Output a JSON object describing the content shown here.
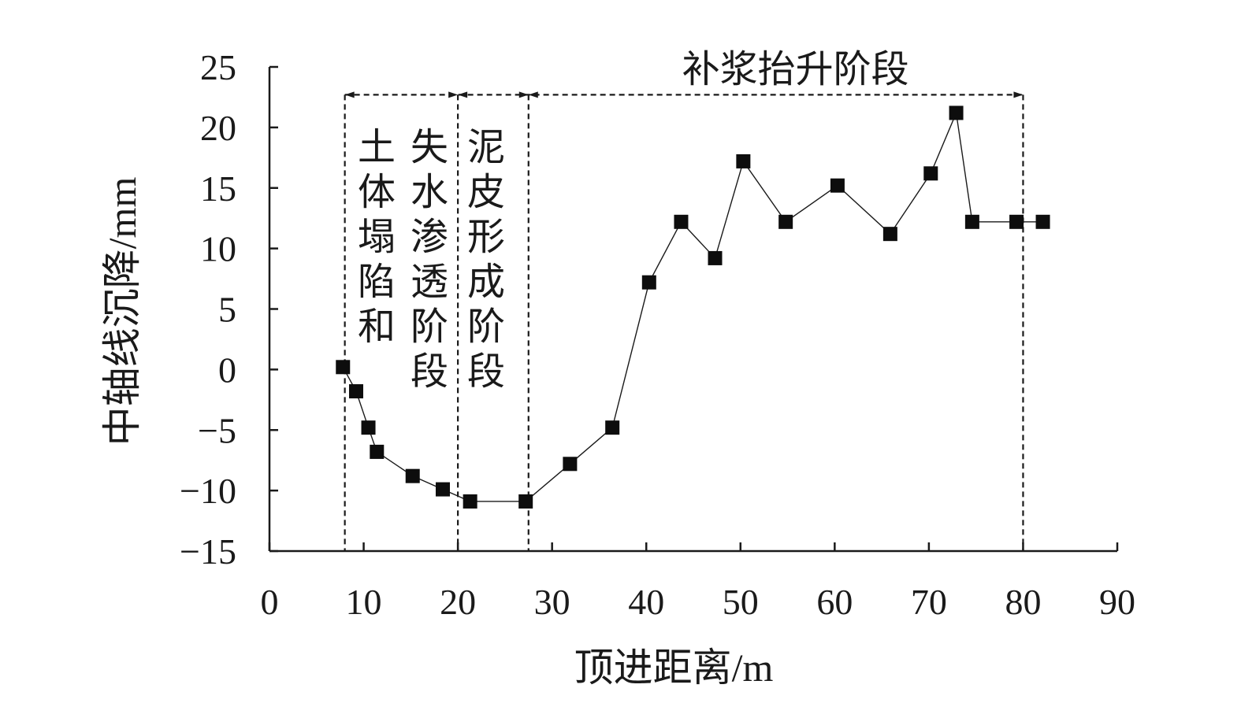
{
  "chart_data": {
    "type": "line",
    "title": "",
    "xlabel": "顶进距离/m",
    "ylabel": "中轴线沉降/mm",
    "xlim": [
      0,
      90
    ],
    "ylim": [
      -15,
      25
    ],
    "x_ticks": [
      0,
      10,
      20,
      30,
      40,
      50,
      60,
      70,
      80,
      90
    ],
    "y_ticks": [
      25,
      20,
      15,
      10,
      5,
      0,
      -5,
      -10,
      -15
    ],
    "x_tick_labels": [
      "0",
      "10",
      "20",
      "30",
      "40",
      "50",
      "60",
      "70",
      "80",
      "90"
    ],
    "y_tick_labels": [
      "25",
      "20",
      "15",
      "10",
      "5",
      "0",
      "−5",
      "−10",
      "−15"
    ],
    "grid": false,
    "marker": "square",
    "series": [
      {
        "x": [
          7.8,
          9.2,
          10.5,
          11.4,
          15.2,
          18.4,
          21.3,
          27.2,
          31.9,
          36.4,
          40.3,
          43.7,
          47.3,
          50.3,
          54.8,
          60.3,
          65.9,
          70.2,
          72.9,
          74.6,
          79.3,
          82.1
        ],
        "values": [
          0.2,
          -1.8,
          -4.8,
          -6.8,
          -8.8,
          -9.9,
          -10.9,
          -10.9,
          -7.8,
          -4.8,
          7.2,
          12.2,
          9.2,
          17.2,
          12.2,
          15.2,
          11.2,
          16.2,
          21.2,
          12.2,
          12.2,
          12.2
        ]
      }
    ],
    "stage_boundaries": [
      8,
      20,
      27.5,
      80
    ],
    "stages": [
      {
        "label": "土体塌陷和",
        "from": 8,
        "to": 20
      },
      {
        "label": "失水渗透阶段",
        "from": 8,
        "to": 20
      },
      {
        "label": "泥皮形成阶段",
        "from": 20,
        "to": 27.5
      },
      {
        "label": "补浆抬升阶段",
        "from": 27.5,
        "to": 80
      }
    ],
    "stage_bracket_y": 22.7
  }
}
